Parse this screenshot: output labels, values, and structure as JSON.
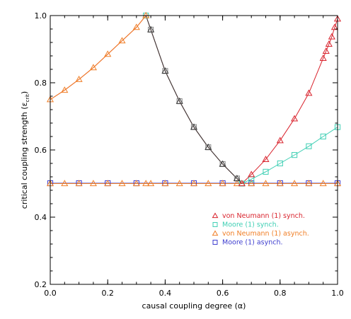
{
  "chart_data": {
    "type": "line",
    "xlabel": "causal coupling degree (α)",
    "ylabel_main": "critical coupling strength (ε",
    "ylabel_sub": "crit",
    "ylabel_close": ")",
    "xlim": [
      0,
      1
    ],
    "ylim": [
      0.2,
      1.0
    ],
    "xticks": [
      0.0,
      0.2,
      0.4,
      0.6,
      0.8,
      1.0
    ],
    "xtick_labels": [
      "0.0",
      "0.2",
      "0.4",
      "0.6",
      "0.8",
      "1.0"
    ],
    "yticks": [
      0.2,
      0.4,
      0.6,
      0.8,
      1.0
    ],
    "ytick_labels": [
      "0.2",
      "0.4",
      "0.6",
      "0.8",
      "1.0"
    ],
    "grid": false,
    "legend_position": "lower-right",
    "series": [
      {
        "name": "von Neumann (1) synch.",
        "color": "#d9232d",
        "marker": "triangle",
        "x": [
          0.0,
          0.05,
          0.1,
          0.15,
          0.2,
          0.25,
          0.3,
          0.333,
          0.35,
          0.4,
          0.45,
          0.5,
          0.55,
          0.6,
          0.65,
          0.667,
          0.7,
          0.75,
          0.8,
          0.85,
          0.9,
          0.95,
          0.96,
          0.97,
          0.98,
          0.99,
          1.0
        ],
        "y": [
          0.75,
          0.778,
          0.81,
          0.845,
          0.885,
          0.925,
          0.965,
          1.0,
          0.958,
          0.835,
          0.745,
          0.668,
          0.608,
          0.558,
          0.515,
          0.5,
          0.527,
          0.572,
          0.628,
          0.693,
          0.769,
          0.873,
          0.894,
          0.915,
          0.937,
          0.965,
          0.99
        ]
      },
      {
        "name": "Moore (1) synch.",
        "color": "#3fcfb4",
        "marker": "square",
        "x": [
          0.333,
          0.35,
          0.4,
          0.45,
          0.5,
          0.55,
          0.6,
          0.65,
          0.667,
          0.7,
          0.75,
          0.8,
          0.85,
          0.9,
          0.95,
          1.0
        ],
        "y": [
          1.0,
          0.958,
          0.835,
          0.745,
          0.668,
          0.608,
          0.558,
          0.515,
          0.5,
          0.513,
          0.535,
          0.56,
          0.585,
          0.611,
          0.64,
          0.668
        ]
      },
      {
        "name": "von Neumann (1) asynch.",
        "color": "#f07f27",
        "marker": "triangle",
        "x": [
          0.0,
          0.05,
          0.1,
          0.15,
          0.2,
          0.25,
          0.3,
          0.333,
          0.35,
          0.4,
          0.45,
          0.5,
          0.55,
          0.6,
          0.65,
          0.667,
          0.7,
          0.75,
          0.8,
          0.85,
          0.9,
          0.95,
          1.0
        ],
        "y": [
          0.5,
          0.5,
          0.5,
          0.5,
          0.5,
          0.5,
          0.5,
          0.5,
          0.5,
          0.5,
          0.5,
          0.5,
          0.5,
          0.5,
          0.5,
          0.5,
          0.5,
          0.5,
          0.5,
          0.5,
          0.5,
          0.5,
          0.5
        ]
      },
      {
        "name": "Moore (1) asynch.",
        "color": "#3d3dcf",
        "marker": "square",
        "x": [
          0.0,
          0.1,
          0.2,
          0.3,
          0.4,
          0.5,
          0.6,
          0.7,
          0.8,
          0.9,
          1.0
        ],
        "y": [
          0.501,
          0.501,
          0.501,
          0.501,
          0.501,
          0.501,
          0.501,
          0.501,
          0.501,
          0.501,
          0.501
        ]
      }
    ],
    "orange_rising": {
      "x": [
        0.0,
        0.05,
        0.1,
        0.15,
        0.2,
        0.25,
        0.3,
        0.333
      ],
      "y": [
        0.75,
        0.778,
        0.81,
        0.845,
        0.885,
        0.925,
        0.965,
        1.0
      ]
    }
  }
}
